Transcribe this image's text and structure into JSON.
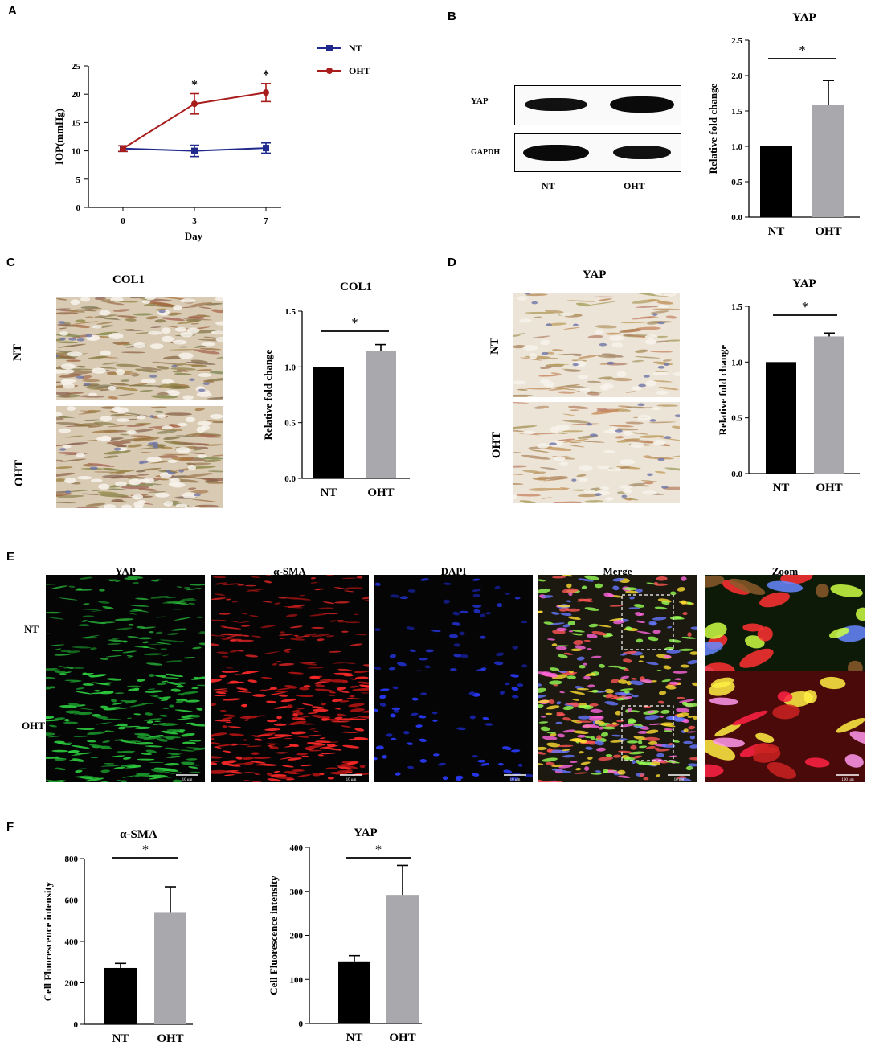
{
  "panel_labels": {
    "A": "A",
    "B": "B",
    "C": "C",
    "D": "D",
    "E": "E",
    "F": "F"
  },
  "colors": {
    "nt_line": "#1f2a8c",
    "oht_line": "#a81c1c",
    "nt_bar": "#000000",
    "oht_bar": "#a8a8ad"
  },
  "chart_data": [
    {
      "id": "A",
      "type": "line",
      "xlabel": "Day",
      "ylabel": "IOP(mmHg)",
      "x": [
        0,
        3,
        7
      ],
      "xticks": [
        "0",
        "3",
        "7"
      ],
      "ylim": [
        0,
        25
      ],
      "yticks": [
        "0",
        "5",
        "10",
        "15",
        "20",
        "25"
      ],
      "legend": [
        "NT",
        "OHT"
      ],
      "legend_position": "top-right",
      "series": [
        {
          "name": "NT",
          "values": [
            10.4,
            10.0,
            10.5
          ],
          "errors": [
            0.5,
            1.0,
            0.9
          ],
          "marker": "square"
        },
        {
          "name": "OHT",
          "values": [
            10.4,
            18.3,
            20.3
          ],
          "errors": [
            0.5,
            1.8,
            1.6
          ],
          "marker": "circle"
        }
      ],
      "significance": [
        "*",
        "*"
      ]
    },
    {
      "id": "B",
      "type": "bar",
      "title": "YAP",
      "categories": [
        "NT",
        "OHT"
      ],
      "values": [
        1.0,
        1.58
      ],
      "errors": [
        0,
        0.35
      ],
      "ylabel": "Relative fold change",
      "ylim": [
        0,
        2.5
      ],
      "yticks": [
        "0.0",
        "0.5",
        "1.0",
        "1.5",
        "2.0",
        "2.5"
      ],
      "significance": "*"
    },
    {
      "id": "C",
      "type": "bar",
      "title": "COL1",
      "categories": [
        "NT",
        "OHT"
      ],
      "values": [
        1.0,
        1.14
      ],
      "errors": [
        0,
        0.06
      ],
      "ylabel": "Relative fold change",
      "ylim": [
        0,
        1.5
      ],
      "yticks": [
        "0.0",
        "0.5",
        "1.0",
        "1.5"
      ],
      "significance": "*"
    },
    {
      "id": "D",
      "type": "bar",
      "title": "YAP",
      "categories": [
        "NT",
        "OHT"
      ],
      "values": [
        1.0,
        1.23
      ],
      "errors": [
        0,
        0.03
      ],
      "ylabel": "Relative fold change",
      "ylim": [
        0,
        1.5
      ],
      "yticks": [
        "0.0",
        "0.5",
        "1.0",
        "1.5"
      ],
      "significance": "*"
    },
    {
      "id": "F1",
      "type": "bar",
      "title": "α-SMA",
      "categories": [
        "NT",
        "OHT"
      ],
      "values": [
        272,
        542
      ],
      "errors": [
        22,
        122
      ],
      "ylabel": "Cell Fluorescence intensity",
      "ylim": [
        0,
        800
      ],
      "yticks": [
        "0",
        "200",
        "400",
        "600",
        "800"
      ],
      "significance": "*"
    },
    {
      "id": "F2",
      "type": "bar",
      "title": "YAP",
      "categories": [
        "NT",
        "OHT"
      ],
      "values": [
        141,
        292
      ],
      "errors": [
        13,
        67
      ],
      "ylabel": "Cell Fluorescence intensity",
      "ylim": [
        0,
        400
      ],
      "yticks": [
        "0",
        "100",
        "200",
        "300",
        "400"
      ],
      "significance": "*"
    }
  ],
  "western_blot": {
    "rows": [
      "YAP",
      "GAPDH"
    ],
    "lanes": [
      "NT",
      "OHT"
    ]
  },
  "ihc_C": {
    "title": "COL1",
    "rows": [
      "NT",
      "OHT"
    ]
  },
  "ihc_D": {
    "title": "YAP",
    "rows": [
      "NT",
      "OHT"
    ]
  },
  "fluorescence": {
    "columns": [
      "YAP",
      "α-SMA",
      "DAPI",
      "Merge",
      "Zoom"
    ],
    "rows": [
      "NT",
      "OHT"
    ],
    "scale_bar": "10 μm",
    "zoom_scale_bar": "100 μm"
  }
}
